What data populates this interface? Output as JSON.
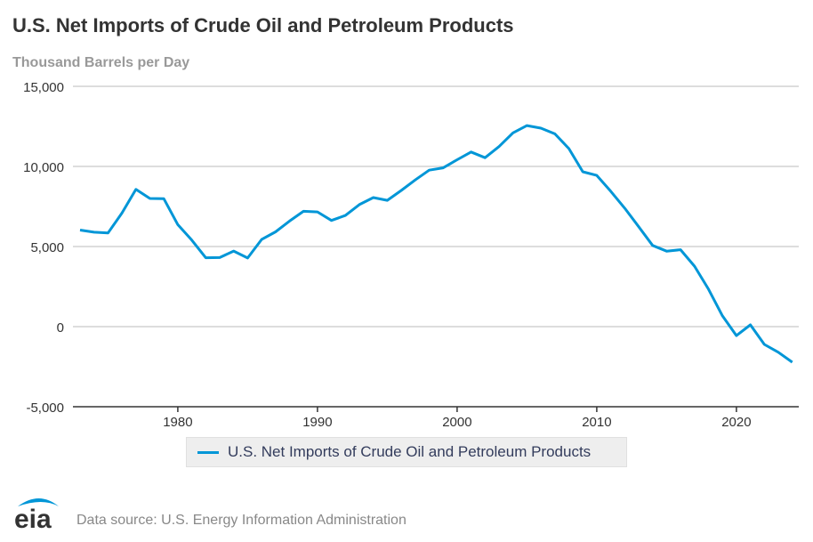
{
  "chart_data": {
    "type": "line",
    "title": "U.S. Net Imports of Crude Oil and Petroleum Products",
    "ylabel": "Thousand Barrels per Day",
    "ylim": [
      -5000,
      15000
    ],
    "xlim": [
      1973,
      2024
    ],
    "yticks": [
      "15,000",
      "10,000",
      "5,000",
      "0",
      "-5,000"
    ],
    "ytick_values": [
      15000,
      10000,
      5000,
      0,
      -5000
    ],
    "xticks": [
      "1980",
      "1990",
      "2000",
      "2010",
      "2020"
    ],
    "grid": true,
    "legend_position": "bottom",
    "series": [
      {
        "name": "U.S. Net Imports of Crude Oil and Petroleum Products",
        "color": "#0096d7",
        "x": [
          1973,
          1974,
          1975,
          1976,
          1977,
          1978,
          1979,
          1980,
          1981,
          1982,
          1983,
          1984,
          1985,
          1986,
          1987,
          1988,
          1989,
          1990,
          1991,
          1992,
          1993,
          1994,
          1995,
          1996,
          1997,
          1998,
          1999,
          2000,
          2001,
          2002,
          2003,
          2004,
          2005,
          2006,
          2007,
          2008,
          2009,
          2010,
          2011,
          2012,
          2013,
          2014,
          2015,
          2016,
          2017,
          2018,
          2019,
          2020,
          2021,
          2022,
          2023,
          2024
        ],
        "values": [
          6025,
          5892,
          5846,
          7090,
          8565,
          8002,
          7985,
          6365,
          5401,
          4298,
          4312,
          4715,
          4286,
          5439,
          5914,
          6587,
          7202,
          7161,
          6626,
          6938,
          7618,
          8054,
          7886,
          8498,
          9158,
          9764,
          9912,
          10419,
          10900,
          10546,
          11238,
          12097,
          12549,
          12390,
          12036,
          11114,
          9667,
          9441,
          8450,
          7393,
          6237,
          5065,
          4711,
          4800,
          3770,
          2341,
          670,
          -560,
          110,
          -1110,
          -1600,
          -2220
        ]
      }
    ]
  },
  "source": "Data source: U.S. Energy Information Administration",
  "logo_text": "eia"
}
